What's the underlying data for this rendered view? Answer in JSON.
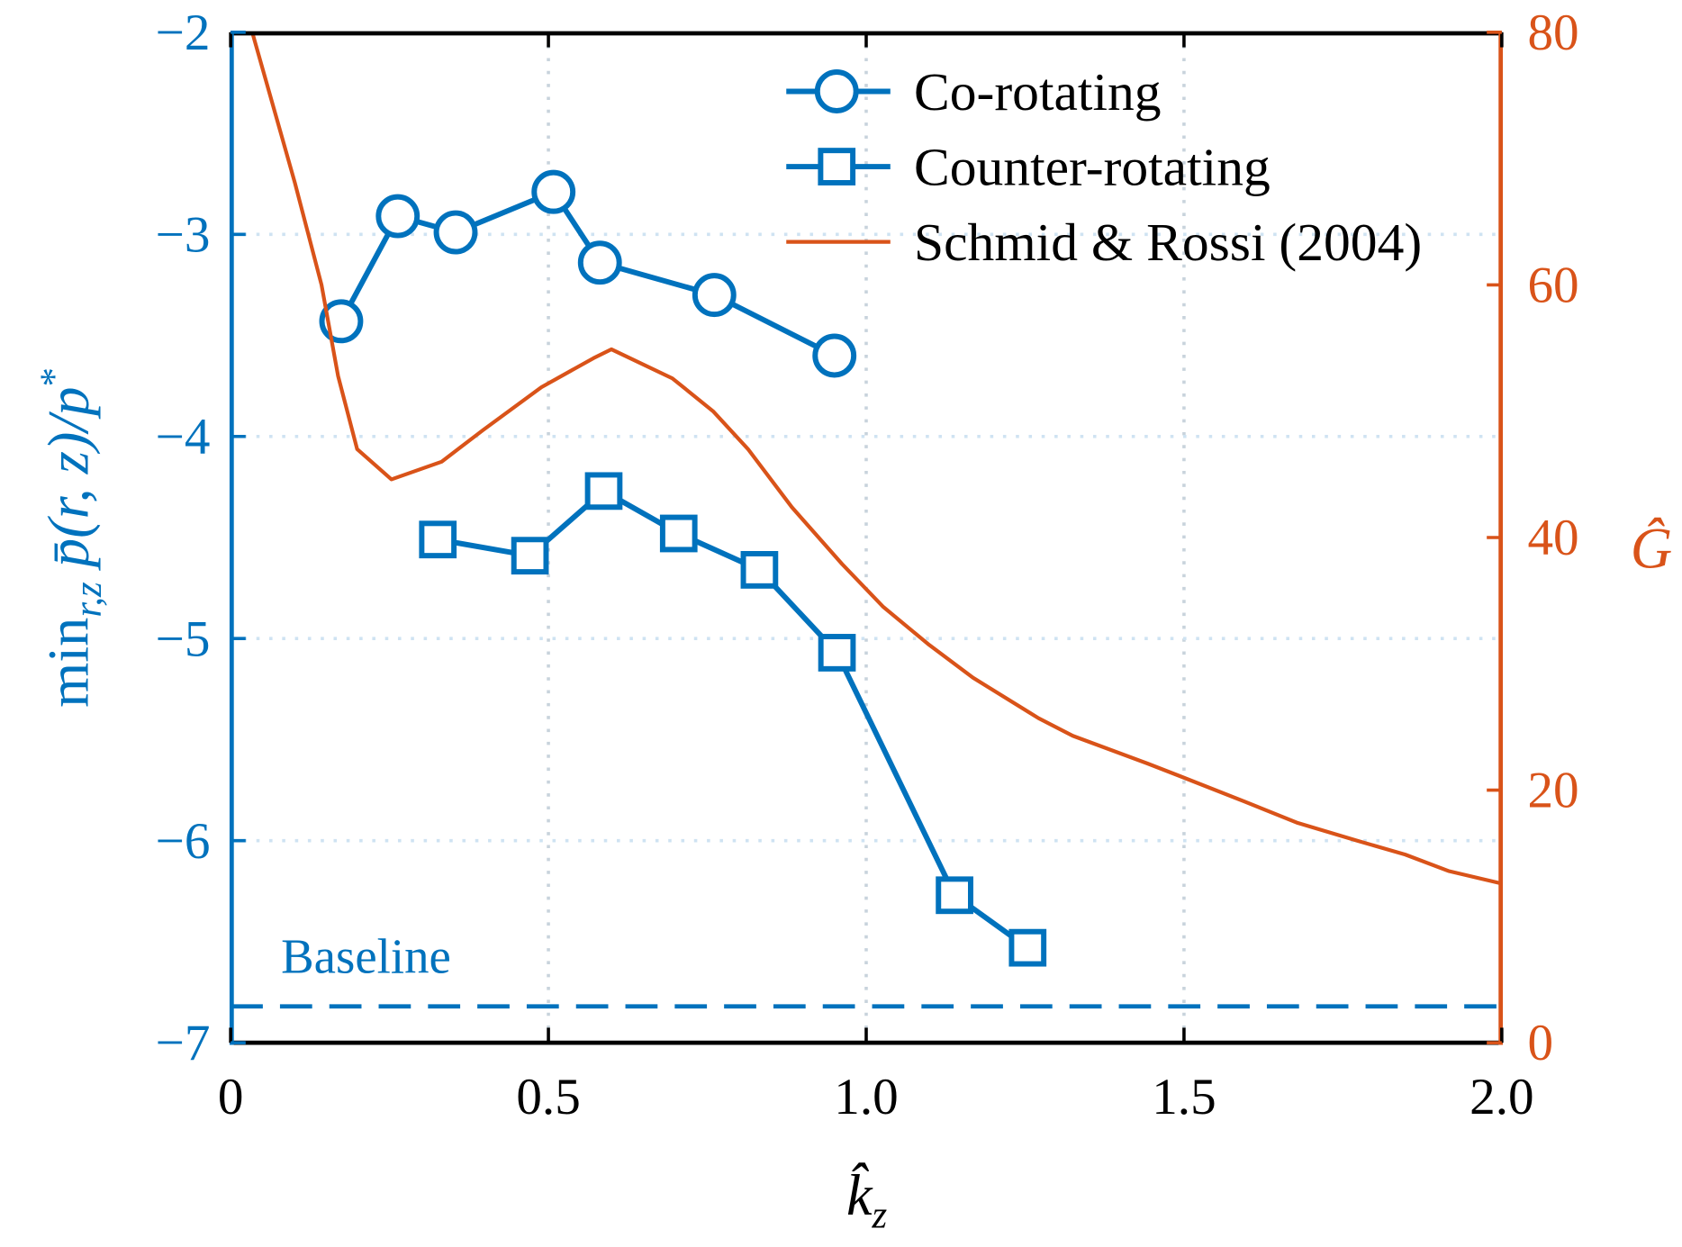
{
  "chart_data": {
    "type": "line",
    "xlabel": {
      "main": "k̂",
      "sub": "z"
    },
    "ylabel_left": {
      "main": "min",
      "sub": "r,z",
      "rest": " p̄(r, z)/p",
      "sup": "*"
    },
    "ylabel_right": "Ĝ",
    "xlim": [
      0,
      2.0
    ],
    "ylim_left": [
      -7,
      -2
    ],
    "ylim_right": [
      0,
      80
    ],
    "x_ticks": [
      "0",
      "0.5",
      "1.0",
      "1.5",
      "2.0"
    ],
    "x_tick_values": [
      0,
      0.5,
      1.0,
      1.5,
      2.0
    ],
    "y_left_ticks": [
      "−7",
      "−6",
      "−5",
      "−4",
      "−3",
      "−2"
    ],
    "y_left_tick_values": [
      -7,
      -6,
      -5,
      -4,
      -3,
      -2
    ],
    "y_right_ticks": [
      "0",
      "20",
      "40",
      "60",
      "80"
    ],
    "y_right_tick_values": [
      0,
      20,
      40,
      60,
      80
    ],
    "grid": "dotted",
    "legend_position": "top-right",
    "colors": {
      "left_axis": "#0072BD",
      "right_axis": "#D95319"
    },
    "series": [
      {
        "name": "Co-rotating",
        "axis": "left",
        "marker": "circle",
        "color": "#0072BD",
        "x": [
          0.174,
          0.263,
          0.354,
          0.508,
          0.581,
          0.761,
          0.95
        ],
        "y": [
          -3.43,
          -2.91,
          -2.99,
          -2.79,
          -3.14,
          -3.3,
          -3.6
        ]
      },
      {
        "name": "Counter-rotating",
        "axis": "left",
        "marker": "square",
        "color": "#0072BD",
        "x": [
          0.326,
          0.471,
          0.587,
          0.705,
          0.832,
          0.954,
          1.139,
          1.254
        ],
        "y": [
          -4.51,
          -4.59,
          -4.27,
          -4.48,
          -4.66,
          -5.07,
          -6.27,
          -6.53
        ]
      },
      {
        "name": "Schmid & Rossi (2004)",
        "axis": "right",
        "marker": "none",
        "color": "#D95319",
        "x": [
          0.034,
          0.101,
          0.143,
          0.169,
          0.199,
          0.253,
          0.332,
          0.397,
          0.489,
          0.571,
          0.599,
          0.695,
          0.759,
          0.814,
          0.883,
          0.962,
          1.027,
          1.099,
          1.168,
          1.271,
          1.325,
          1.443,
          1.494,
          1.595,
          1.679,
          1.772,
          1.848,
          1.916,
          2.0
        ],
        "y": [
          80,
          68.1,
          60,
          52.8,
          47,
          44.6,
          46,
          48.5,
          51.9,
          54.2,
          54.9,
          52.6,
          50,
          47,
          42.4,
          37.9,
          34.5,
          31.5,
          28.9,
          25.7,
          24.3,
          22.1,
          21.1,
          19.1,
          17.4,
          16,
          14.9,
          13.6,
          12.6
        ]
      }
    ],
    "annotations": [
      {
        "text": "Baseline",
        "axis": "left",
        "y": -6.82,
        "style": "dashed",
        "color": "#0072BD"
      }
    ]
  }
}
